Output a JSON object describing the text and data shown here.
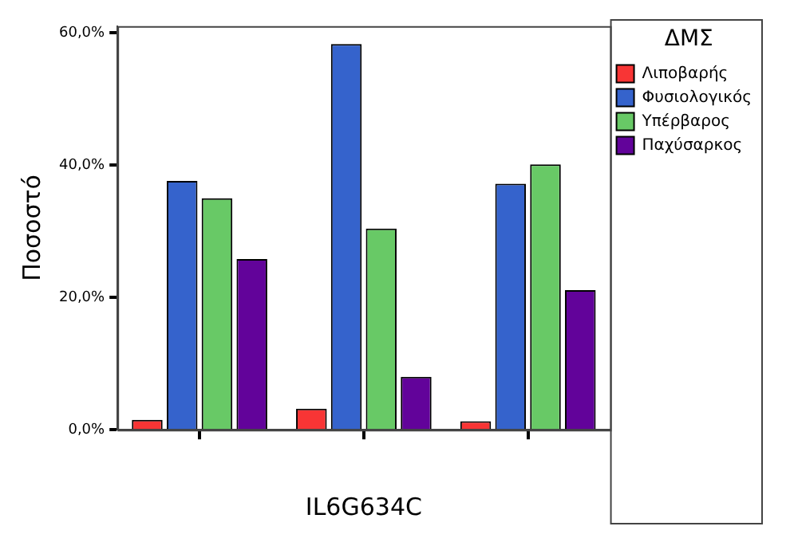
{
  "chart_data": {
    "type": "bar",
    "xlabel": "IL6G634C",
    "ylabel": "Ποσοστό",
    "legend_title": "ΔΜΣ",
    "legend": "top right",
    "categories": [
      null,
      null,
      null
    ],
    "ylim": [
      0,
      61
    ],
    "yticks": [
      {
        "value": 0,
        "label": "0,0%"
      },
      {
        "value": 20,
        "label": "20,0%"
      },
      {
        "value": 40,
        "label": "40,0%"
      },
      {
        "value": 60,
        "label": "60,0%"
      }
    ],
    "series": [
      {
        "name": "Λιποβαρής",
        "color": "#f83535",
        "values": [
          1.5,
          3.2,
          1.3
        ]
      },
      {
        "name": "Φυσιολογικός",
        "color": "#3563cc",
        "values": [
          37.6,
          58.3,
          37.2
        ]
      },
      {
        "name": "Υπέρβαρος",
        "color": "#68c966",
        "values": [
          35.0,
          30.4,
          40.1
        ]
      },
      {
        "name": "Παχύσαρκος",
        "color": "#62039a",
        "values": [
          25.8,
          8.0,
          21.1
        ]
      }
    ]
  }
}
